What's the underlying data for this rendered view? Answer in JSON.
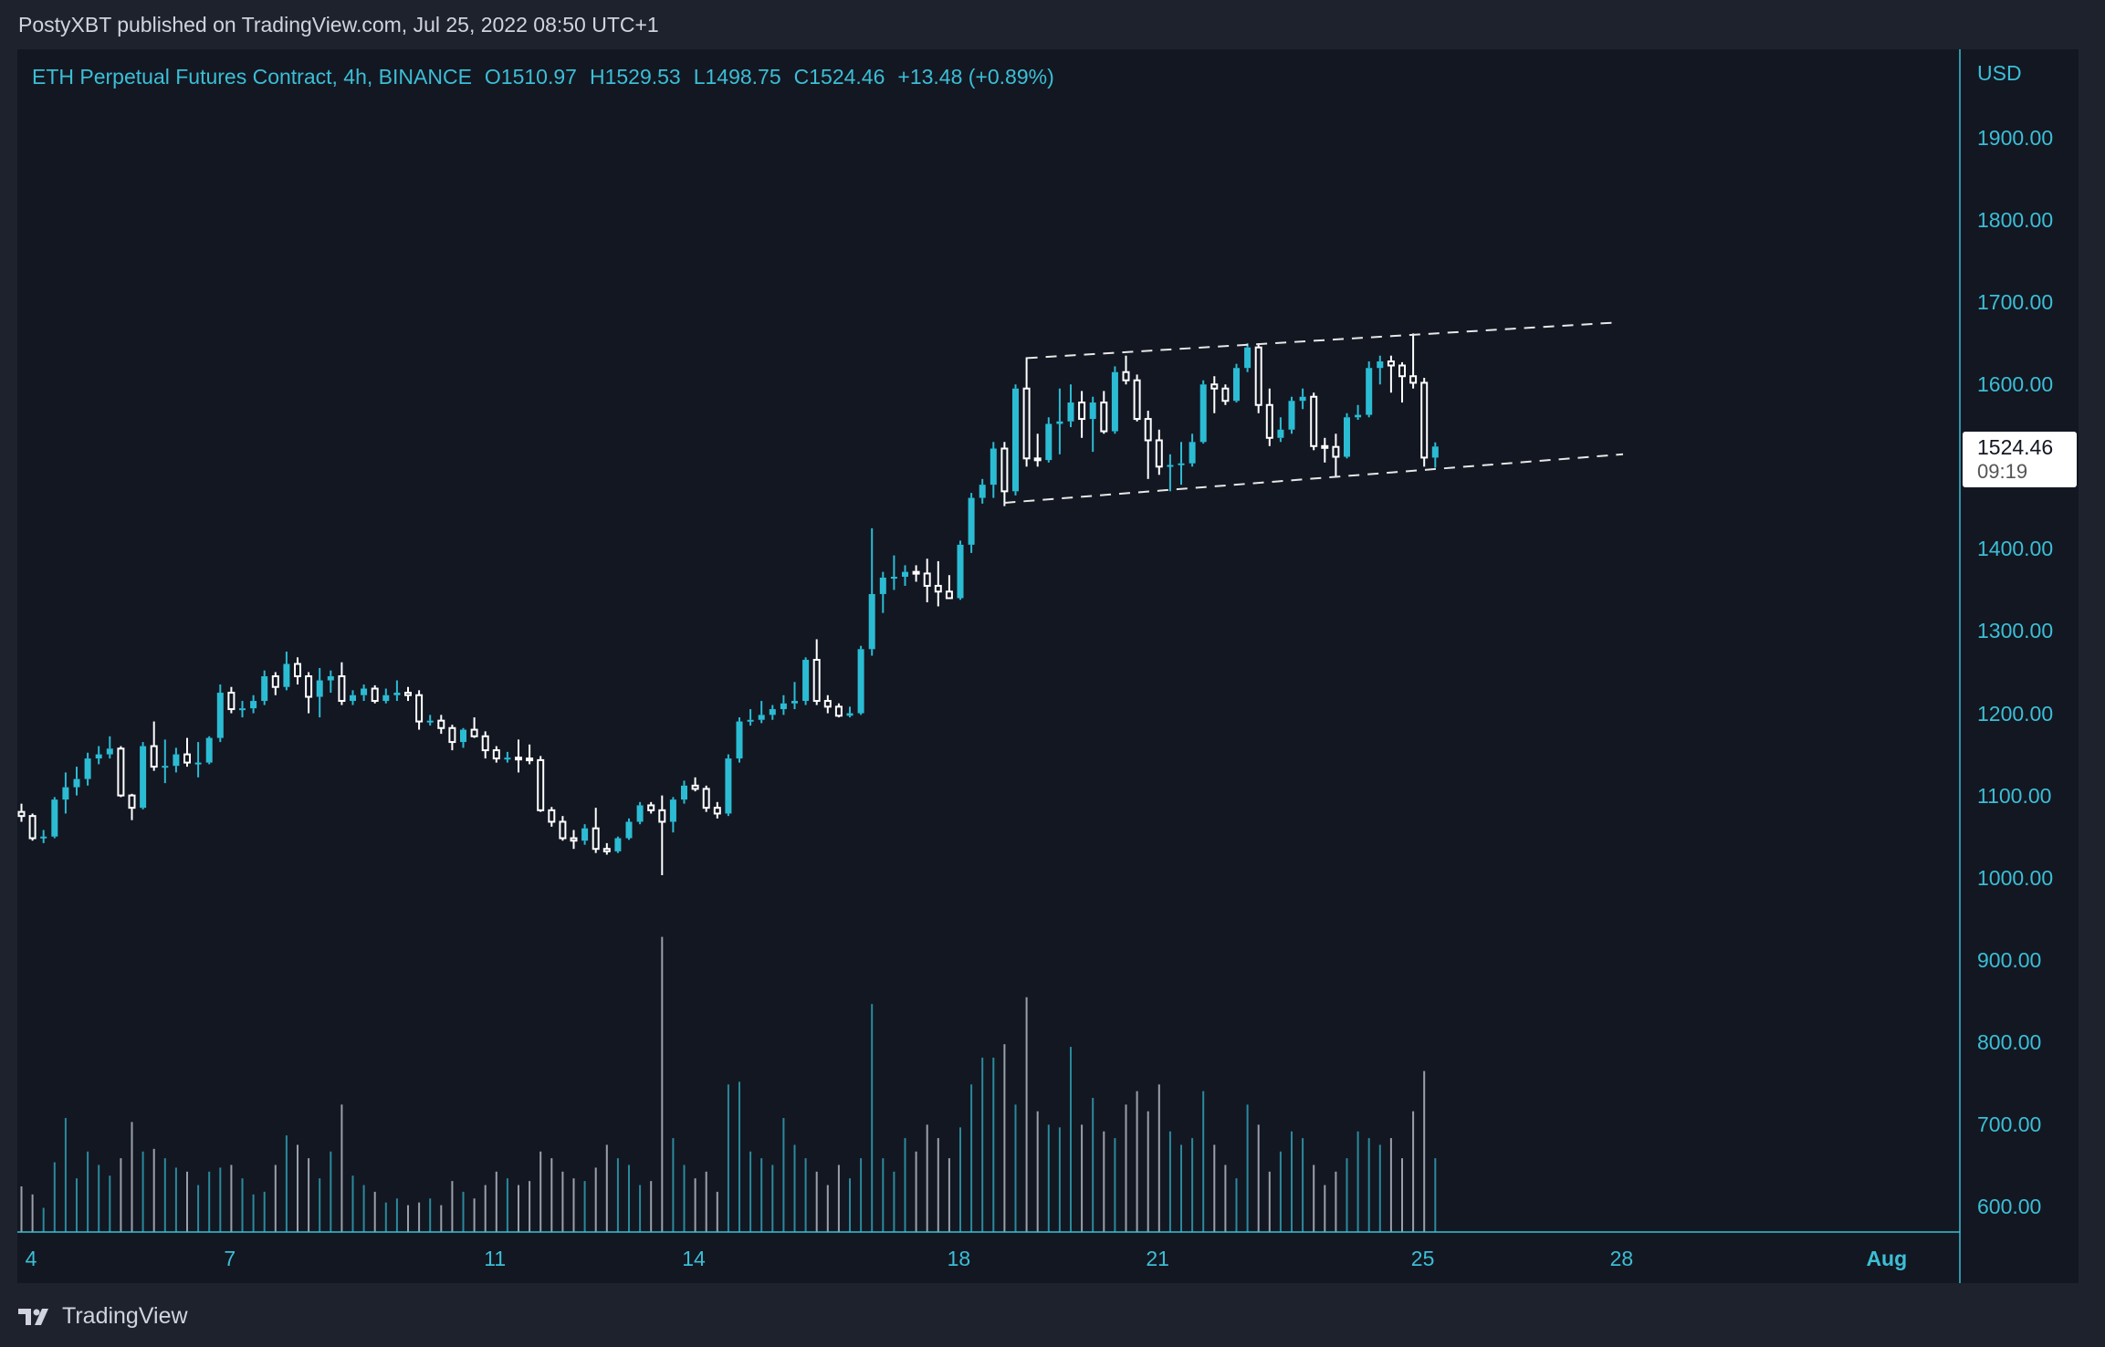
{
  "header": {
    "published": "PostyXBT published on TradingView.com, Jul 25, 2022 08:50 UTC+1"
  },
  "legend": {
    "symbol": "ETH Perpetual Futures Contract, 4h, BINANCE",
    "open": "O1510.97",
    "high": "H1529.53",
    "low": "L1498.75",
    "close": "C1524.46",
    "change": "+13.48 (+0.89%)"
  },
  "price_tag": {
    "price": "1524.46",
    "countdown": "09:19"
  },
  "footer": {
    "brand": "TradingView",
    "logo_icon": "tradingview-logo-icon"
  },
  "colors": {
    "up": "#2bbcd4",
    "down": "#ffffff",
    "background": "#131722",
    "text": "#3bbfd6"
  },
  "chart_data": {
    "type": "candlestick",
    "interval": "4h",
    "currency_label": "USD",
    "ylim": [
      560,
      1960
    ],
    "y_ticks": [
      "1900.00",
      "1800.00",
      "1700.00",
      "1600.00",
      "1500.00",
      "1400.00",
      "1300.00",
      "1200.00",
      "1100.00",
      "1000.00",
      "900.00",
      "800.00",
      "700.00",
      "600.00"
    ],
    "y_tick_values": [
      1900,
      1800,
      1700,
      1600,
      1500,
      1400,
      1300,
      1200,
      1100,
      1000,
      900,
      800,
      700,
      600
    ],
    "x_ticks": [
      {
        "label": "4",
        "day": 4
      },
      {
        "label": "7",
        "day": 7
      },
      {
        "label": "11",
        "day": 11
      },
      {
        "label": "14",
        "day": 14
      },
      {
        "label": "18",
        "day": 18
      },
      {
        "label": "21",
        "day": 21
      },
      {
        "label": "25",
        "day": 25
      },
      {
        "label": "28",
        "day": 28
      },
      {
        "label": "Aug",
        "day": 32,
        "bold": true
      }
    ],
    "candles_ohlc": [
      [
        1080,
        1090,
        1068,
        1075
      ],
      [
        1075,
        1078,
        1045,
        1048
      ],
      [
        1048,
        1058,
        1042,
        1050
      ],
      [
        1050,
        1098,
        1048,
        1095
      ],
      [
        1095,
        1128,
        1078,
        1110
      ],
      [
        1110,
        1135,
        1100,
        1120
      ],
      [
        1120,
        1152,
        1112,
        1145
      ],
      [
        1145,
        1160,
        1138,
        1150
      ],
      [
        1150,
        1172,
        1145,
        1157
      ],
      [
        1157,
        1160,
        1098,
        1100
      ],
      [
        1100,
        1102,
        1070,
        1085
      ],
      [
        1085,
        1165,
        1083,
        1160
      ],
      [
        1160,
        1190,
        1130,
        1135
      ],
      [
        1135,
        1168,
        1115,
        1136
      ],
      [
        1136,
        1158,
        1128,
        1150
      ],
      [
        1150,
        1170,
        1135,
        1140
      ],
      [
        1140,
        1165,
        1122,
        1140
      ],
      [
        1140,
        1172,
        1138,
        1170
      ],
      [
        1170,
        1235,
        1165,
        1225
      ],
      [
        1225,
        1232,
        1200,
        1205
      ],
      [
        1205,
        1215,
        1195,
        1206
      ],
      [
        1206,
        1222,
        1200,
        1215
      ],
      [
        1215,
        1252,
        1210,
        1245
      ],
      [
        1245,
        1250,
        1222,
        1232
      ],
      [
        1232,
        1275,
        1228,
        1260
      ],
      [
        1260,
        1268,
        1235,
        1245
      ],
      [
        1245,
        1250,
        1200,
        1220
      ],
      [
        1220,
        1255,
        1195,
        1240
      ],
      [
        1240,
        1252,
        1225,
        1245
      ],
      [
        1245,
        1262,
        1210,
        1215
      ],
      [
        1215,
        1228,
        1210,
        1222
      ],
      [
        1222,
        1235,
        1215,
        1230
      ],
      [
        1230,
        1234,
        1212,
        1215
      ],
      [
        1215,
        1230,
        1212,
        1222
      ],
      [
        1222,
        1240,
        1215,
        1225
      ],
      [
        1225,
        1232,
        1215,
        1222
      ],
      [
        1222,
        1228,
        1180,
        1190
      ],
      [
        1190,
        1198,
        1185,
        1191
      ],
      [
        1191,
        1198,
        1175,
        1182
      ],
      [
        1182,
        1186,
        1155,
        1165
      ],
      [
        1165,
        1182,
        1158,
        1180
      ],
      [
        1180,
        1195,
        1170,
        1172
      ],
      [
        1172,
        1178,
        1145,
        1155
      ],
      [
        1155,
        1160,
        1140,
        1145
      ],
      [
        1145,
        1153,
        1140,
        1146
      ],
      [
        1146,
        1168,
        1128,
        1145
      ],
      [
        1145,
        1162,
        1138,
        1143
      ],
      [
        1143,
        1148,
        1080,
        1082
      ],
      [
        1082,
        1086,
        1062,
        1068
      ],
      [
        1068,
        1075,
        1045,
        1048
      ],
      [
        1048,
        1058,
        1035,
        1045
      ],
      [
        1045,
        1065,
        1040,
        1060
      ],
      [
        1060,
        1085,
        1030,
        1035
      ],
      [
        1035,
        1042,
        1028,
        1032
      ],
      [
        1032,
        1050,
        1030,
        1048
      ],
      [
        1048,
        1072,
        1046,
        1068
      ],
      [
        1068,
        1092,
        1065,
        1088
      ],
      [
        1088,
        1092,
        1078,
        1082
      ],
      [
        1082,
        1100,
        1003,
        1068
      ],
      [
        1068,
        1098,
        1055,
        1095
      ],
      [
        1095,
        1118,
        1090,
        1112
      ],
      [
        1112,
        1122,
        1105,
        1108
      ],
      [
        1108,
        1112,
        1080,
        1085
      ],
      [
        1085,
        1092,
        1072,
        1078
      ],
      [
        1078,
        1150,
        1075,
        1145
      ],
      [
        1145,
        1195,
        1140,
        1190
      ],
      [
        1190,
        1205,
        1185,
        1192
      ],
      [
        1192,
        1215,
        1188,
        1198
      ],
      [
        1198,
        1210,
        1192,
        1205
      ],
      [
        1205,
        1222,
        1198,
        1212
      ],
      [
        1212,
        1238,
        1205,
        1215
      ],
      [
        1215,
        1268,
        1210,
        1265
      ],
      [
        1265,
        1290,
        1210,
        1215
      ],
      [
        1215,
        1222,
        1200,
        1208
      ],
      [
        1208,
        1212,
        1195,
        1197
      ],
      [
        1197,
        1208,
        1195,
        1200
      ],
      [
        1200,
        1282,
        1198,
        1278
      ],
      [
        1278,
        1425,
        1270,
        1345
      ],
      [
        1345,
        1372,
        1322,
        1365
      ],
      [
        1365,
        1392,
        1350,
        1366
      ],
      [
        1366,
        1380,
        1355,
        1372
      ],
      [
        1372,
        1380,
        1360,
        1370
      ],
      [
        1370,
        1388,
        1335,
        1355
      ],
      [
        1355,
        1385,
        1330,
        1348
      ],
      [
        1348,
        1368,
        1340,
        1340
      ],
      [
        1340,
        1410,
        1338,
        1405
      ],
      [
        1405,
        1468,
        1395,
        1462
      ],
      [
        1462,
        1485,
        1455,
        1478
      ],
      [
        1478,
        1530,
        1462,
        1522
      ],
      [
        1522,
        1530,
        1452,
        1470
      ],
      [
        1470,
        1600,
        1465,
        1595
      ],
      [
        1595,
        1633,
        1500,
        1510
      ],
      [
        1510,
        1540,
        1500,
        1508
      ],
      [
        1508,
        1560,
        1505,
        1552
      ],
      [
        1552,
        1595,
        1515,
        1555
      ],
      [
        1555,
        1600,
        1548,
        1578
      ],
      [
        1578,
        1592,
        1535,
        1558
      ],
      [
        1558,
        1585,
        1518,
        1578
      ],
      [
        1578,
        1592,
        1540,
        1543
      ],
      [
        1543,
        1622,
        1540,
        1615
      ],
      [
        1615,
        1635,
        1600,
        1605
      ],
      [
        1605,
        1612,
        1555,
        1558
      ],
      [
        1558,
        1568,
        1485,
        1532
      ],
      [
        1532,
        1545,
        1490,
        1500
      ],
      [
        1500,
        1515,
        1470,
        1502
      ],
      [
        1502,
        1530,
        1478,
        1504
      ],
      [
        1504,
        1540,
        1500,
        1530
      ],
      [
        1530,
        1605,
        1528,
        1600
      ],
      [
        1600,
        1610,
        1565,
        1595
      ],
      [
        1595,
        1600,
        1575,
        1580
      ],
      [
        1580,
        1625,
        1578,
        1620
      ],
      [
        1620,
        1650,
        1615,
        1645
      ],
      [
        1645,
        1650,
        1565,
        1575
      ],
      [
        1575,
        1595,
        1525,
        1535
      ],
      [
        1535,
        1560,
        1530,
        1545
      ],
      [
        1545,
        1585,
        1540,
        1580
      ],
      [
        1580,
        1595,
        1570,
        1585
      ],
      [
        1585,
        1590,
        1520,
        1525
      ],
      [
        1525,
        1535,
        1505,
        1524
      ],
      [
        1524,
        1540,
        1488,
        1512
      ],
      [
        1512,
        1565,
        1510,
        1560
      ],
      [
        1560,
        1575,
        1557,
        1563
      ],
      [
        1563,
        1628,
        1560,
        1620
      ],
      [
        1620,
        1635,
        1600,
        1628
      ],
      [
        1628,
        1635,
        1590,
        1623
      ],
      [
        1623,
        1627,
        1578,
        1610
      ],
      [
        1610,
        1662,
        1595,
        1602
      ],
      [
        1602,
        1608,
        1500,
        1511
      ],
      [
        1510.97,
        1529.53,
        1498.75,
        1524.46
      ]
    ],
    "volume_relative": [
      34,
      28,
      18,
      52,
      85,
      40,
      60,
      50,
      42,
      55,
      82,
      60,
      62,
      55,
      48,
      45,
      35,
      45,
      48,
      50,
      40,
      28,
      30,
      50,
      72,
      65,
      55,
      40,
      60,
      95,
      42,
      35,
      30,
      22,
      25,
      20,
      22,
      25,
      20,
      38,
      30,
      25,
      35,
      45,
      40,
      35,
      38,
      60,
      55,
      45,
      40,
      38,
      48,
      65,
      55,
      50,
      35,
      38,
      220,
      70,
      50,
      40,
      45,
      30,
      110,
      112,
      60,
      55,
      50,
      85,
      65,
      55,
      45,
      35,
      50,
      40,
      55,
      170,
      55,
      45,
      70,
      60,
      80,
      70,
      55,
      78,
      110,
      130,
      130,
      140,
      95,
      175,
      90,
      80,
      78,
      138,
      80,
      100,
      75,
      70,
      95,
      105,
      90,
      110,
      75,
      65,
      70,
      105,
      65,
      50,
      40,
      95,
      80,
      45,
      60,
      75,
      70,
      50,
      35,
      45,
      55,
      75,
      70,
      65,
      70,
      55,
      90,
      120,
      55
    ],
    "trendlines": [
      {
        "style": "dashed",
        "from": {
          "candle": 91,
          "price": 1632
        },
        "to": {
          "candle": 144,
          "price": 1675
        }
      },
      {
        "style": "dashed",
        "from": {
          "candle": 89,
          "price": 1456
        },
        "to": {
          "candle": 145,
          "price": 1515
        }
      }
    ],
    "last_price": 1524.46
  }
}
